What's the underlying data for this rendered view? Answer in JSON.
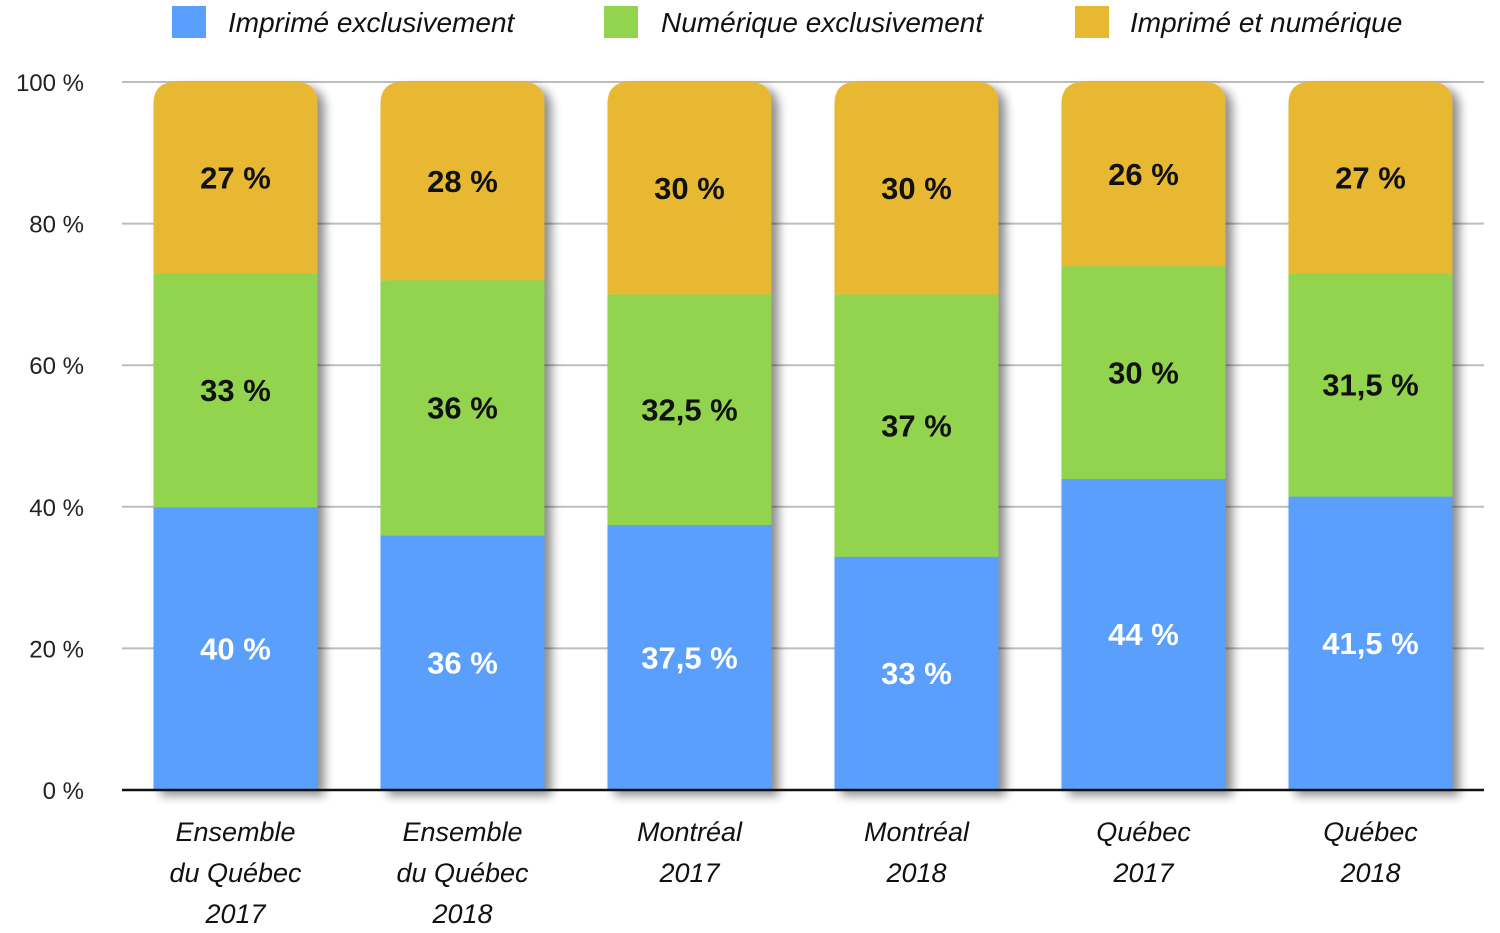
{
  "chart_data": {
    "type": "bar",
    "stacked": true,
    "title": "",
    "xlabel": "",
    "ylabel": "",
    "ylim": [
      0,
      100
    ],
    "yticks": [
      "0 %",
      "20 %",
      "40 %",
      "60 %",
      "80 %",
      "100 %"
    ],
    "grid": true,
    "legend_position": "top",
    "categories": [
      [
        "Ensemble",
        "du Québec",
        "2017"
      ],
      [
        "Ensemble",
        "du Québec",
        "2018"
      ],
      [
        "Montréal",
        "2017"
      ],
      [
        "Montréal",
        "2018"
      ],
      [
        "Québec",
        "2017"
      ],
      [
        "Québec",
        "2018"
      ]
    ],
    "series": [
      {
        "name": "Imprimé exclusivement",
        "color": "#5a9ffc",
        "label_color": "#ffffff",
        "values": [
          40,
          36,
          37.5,
          33,
          44,
          41.5
        ],
        "labels": [
          "40 %",
          "36 %",
          "37,5 %",
          "33 %",
          "44 %",
          "41,5 %"
        ]
      },
      {
        "name": "Numérique exclusivement",
        "color": "#92d44e",
        "label_color": "#111111",
        "values": [
          33,
          36,
          32.5,
          37,
          30,
          31.5
        ],
        "labels": [
          "33 %",
          "36 %",
          "32,5 %",
          "37 %",
          "30 %",
          "31,5 %"
        ]
      },
      {
        "name": "Imprimé et numérique",
        "color": "#e8b832",
        "label_color": "#111111",
        "values": [
          27,
          28,
          30,
          30,
          26,
          27
        ],
        "labels": [
          "27 %",
          "28 %",
          "30 %",
          "30 %",
          "26 %",
          "27 %"
        ]
      }
    ]
  }
}
